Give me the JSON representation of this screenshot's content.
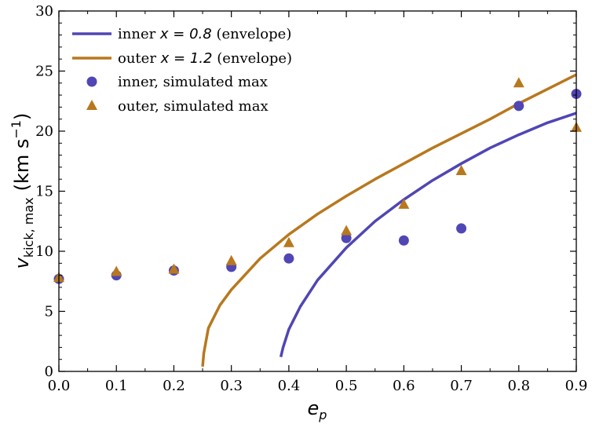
{
  "chart_data": {
    "type": "scatter",
    "xlabel_main": "e",
    "xlabel_sub": "p",
    "ylabel_main": "v",
    "ylabel_sub": "kick, max",
    "ylabel_units": "(km s",
    "ylabel_exp": "−1",
    "ylabel_close": ")",
    "xlim": [
      0.0,
      0.9
    ],
    "ylim": [
      0,
      30
    ],
    "xticks": [
      "0.0",
      "0.1",
      "0.2",
      "0.3",
      "0.4",
      "0.5",
      "0.6",
      "0.7",
      "0.8",
      "0.9"
    ],
    "yticks": [
      "0",
      "5",
      "10",
      "15",
      "20",
      "25",
      "30"
    ],
    "grid": false,
    "legend_position": "top-left",
    "colors": {
      "inner": "#5046b4",
      "outer": "#b8781e"
    },
    "legend": [
      {
        "text": "inner x = 0.8 (envelope)",
        "prefix": "inner ",
        "math": "x = 0.8",
        "suffix": " (envelope)",
        "marker": "line",
        "color": "#5046b4"
      },
      {
        "text": "outer x = 1.2 (envelope)",
        "prefix": "outer ",
        "math": "x = 1.2",
        "suffix": " (envelope)",
        "marker": "line",
        "color": "#b8781e"
      },
      {
        "text": "inner, simulated max",
        "marker": "circle",
        "color": "#5046b4"
      },
      {
        "text": "outer, simulated max",
        "marker": "triangle",
        "color": "#b8781e"
      }
    ],
    "series": [
      {
        "name": "inner x = 0.8 (envelope)",
        "kind": "line",
        "color": "#5046b4",
        "x": [
          0.386,
          0.39,
          0.4,
          0.42,
          0.45,
          0.5,
          0.55,
          0.6,
          0.65,
          0.7,
          0.75,
          0.8,
          0.85,
          0.9
        ],
        "y": [
          1.2,
          2.0,
          3.5,
          5.4,
          7.6,
          10.3,
          12.5,
          14.3,
          15.9,
          17.3,
          18.6,
          19.7,
          20.7,
          21.5
        ]
      },
      {
        "name": "outer x = 1.2 (envelope)",
        "kind": "line",
        "color": "#b8781e",
        "x": [
          0.25,
          0.252,
          0.26,
          0.28,
          0.3,
          0.35,
          0.4,
          0.45,
          0.5,
          0.55,
          0.6,
          0.65,
          0.7,
          0.75,
          0.8,
          0.85,
          0.9
        ],
        "y": [
          0.4,
          1.5,
          3.6,
          5.5,
          6.8,
          9.4,
          11.4,
          13.1,
          14.6,
          16.0,
          17.3,
          18.6,
          19.8,
          21.0,
          22.3,
          23.5,
          24.7
        ]
      },
      {
        "name": "inner, simulated max",
        "kind": "scatter",
        "marker": "circle",
        "color": "#5046b4",
        "x": [
          0.0,
          0.1,
          0.2,
          0.3,
          0.4,
          0.5,
          0.6,
          0.7,
          0.8,
          0.9
        ],
        "y": [
          7.7,
          8.0,
          8.4,
          8.7,
          9.4,
          11.1,
          10.9,
          11.9,
          22.1,
          23.1
        ]
      },
      {
        "name": "outer, simulated max",
        "kind": "scatter",
        "marker": "triangle",
        "color": "#b8781e",
        "x": [
          0.0,
          0.1,
          0.2,
          0.3,
          0.4,
          0.5,
          0.6,
          0.7,
          0.8,
          0.9
        ],
        "y": [
          7.8,
          8.3,
          8.5,
          9.2,
          10.7,
          11.7,
          13.9,
          16.7,
          24.0,
          20.3
        ]
      }
    ]
  }
}
